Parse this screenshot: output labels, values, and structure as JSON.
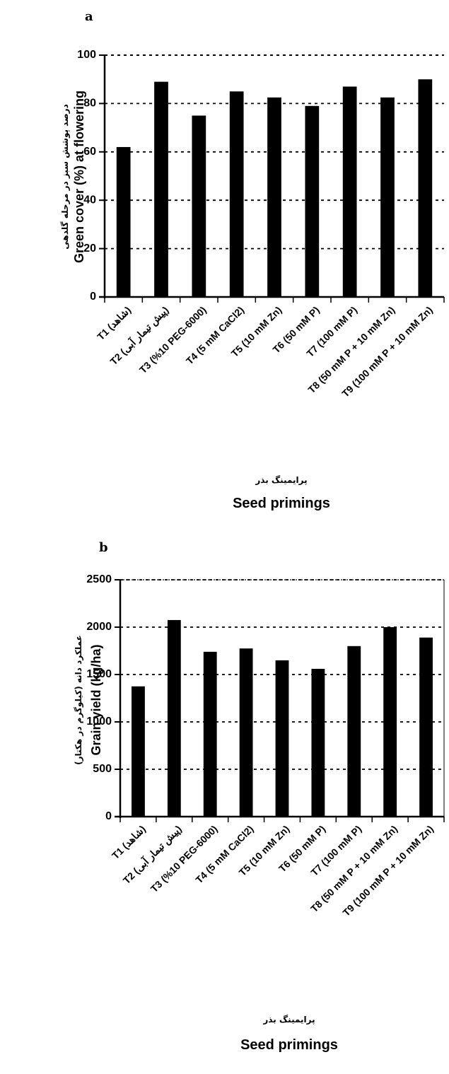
{
  "chart_data": [
    {
      "panel": "a",
      "type": "bar",
      "categories": [
        "T1 (شاهد)",
        "T2 (پیش تیمار آبی)",
        "T3 (%10 PEG-6000)",
        "T4 (5 mM CaCl2)",
        "T5 (10 mM Zn)",
        "T6 (50 mM P)",
        "T7 (100 mM P)",
        "T8 (50 mM P + 10 mM Zn)",
        "T9 (100 mM P + 10 mM Zn)"
      ],
      "values": [
        62,
        89,
        75,
        85,
        82.5,
        79,
        87,
        82.5,
        90
      ],
      "ylabel_fa": "درصد پوشش سبز در مرحله گلدهی",
      "ylabel": "Green cover (%) at flowering",
      "xlabel_fa": "پرایمینگ بذر",
      "xlabel": "Seed primings",
      "ylim": [
        0,
        100
      ],
      "yticks": [
        0,
        20,
        40,
        60,
        80,
        100
      ],
      "grid": "horizontal-dotted",
      "legend": "none",
      "bar_color": "#000000"
    },
    {
      "panel": "b",
      "type": "bar",
      "categories": [
        "T1 (شاهد)",
        "T2 (پیش تیمار آبی)",
        "T3 (%10 PEG-6000)",
        "T4 (5 mM CaCl2)",
        "T5 (10 mM Zn)",
        "T6 (50 mM P)",
        "T7 (100 mM P)",
        "T8 (50 mM P + 10 mM Zn)",
        "T9 (100 mM P + 10 mM Zn)"
      ],
      "values": [
        1375,
        2075,
        1740,
        1775,
        1650,
        1560,
        1800,
        2000,
        1890
      ],
      "ylabel_fa": "عملکرد دانه (کیلوگرم در هکتار)",
      "ylabel": "Grain yield (kg/ha)",
      "xlabel_fa": "پرایمینگ بذر",
      "xlabel": "Seed primings",
      "ylim": [
        0,
        2500
      ],
      "yticks": [
        0,
        500,
        1000,
        1500,
        2000,
        2500
      ],
      "grid": "horizontal-dotted",
      "legend": "none",
      "bar_color": "#000000"
    }
  ]
}
